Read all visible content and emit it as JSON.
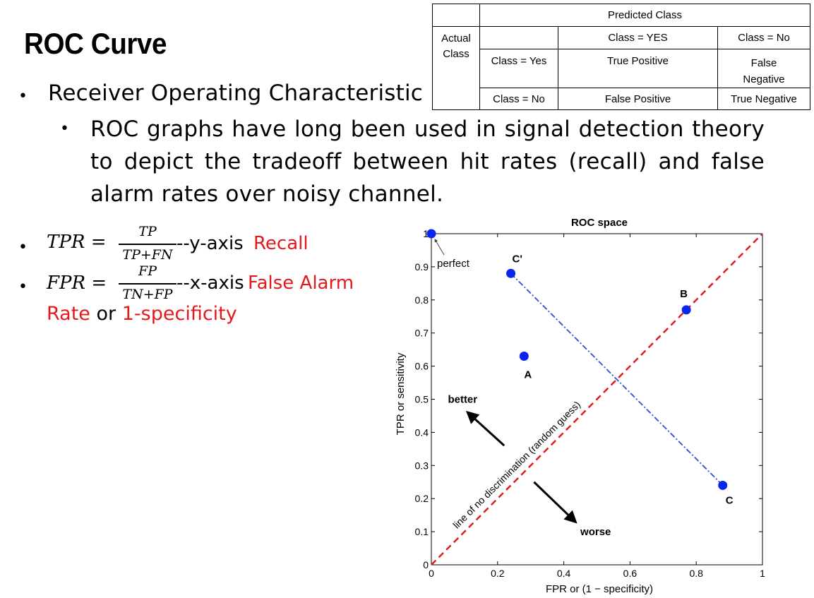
{
  "slide": {
    "title": "ROC Curve",
    "bullet1": "Receiver Operating Characteristic",
    "bullet2": "ROC graphs have long been used in signal detection theory to depict the tradeoff between hit rates (recall) and false alarm rates over noisy channel.",
    "bullet_char": "•"
  },
  "formulas": {
    "tpr": {
      "lhs": "TPR",
      "eq": "=",
      "num": "TP",
      "den": "TP+FN",
      "suffix": "--y-axis",
      "term": "Recall"
    },
    "fpr": {
      "lhs": "FPR",
      "eq": "=",
      "num": "FP",
      "den": "TN+FP",
      "suffix": "--x-axis",
      "term": "False Alarm"
    },
    "rate_line": {
      "part1": "Rate",
      "part2": "or",
      "part3": "1-specificity"
    }
  },
  "confusion_matrix": {
    "predicted_header": "Predicted Class",
    "actual_header": "Actual Class",
    "col_yes": "Class = YES",
    "col_no": "Class = No",
    "row_yes": "Class = Yes",
    "row_no": "Class = No",
    "tp": "True Positive",
    "fn": "False Negative",
    "fp": "False Positive",
    "tn": "True Negative"
  },
  "chart_data": {
    "type": "scatter",
    "title": "ROC space",
    "xlabel": "FPR or (1 − specificity)",
    "ylabel": "TPR or sensitivity",
    "xlim": [
      0,
      1
    ],
    "ylim": [
      0,
      1
    ],
    "x_ticks": [
      "0",
      "0.2",
      "0.4",
      "0.6",
      "0.8",
      "1"
    ],
    "y_ticks": [
      "0",
      "0.1",
      "0.2",
      "0.3",
      "0.4",
      "0.5",
      "0.6",
      "0.7",
      "0.8",
      "0.9",
      "1"
    ],
    "points": [
      {
        "label": "perfect",
        "x": 0.0,
        "y": 1.0
      },
      {
        "label": "C'",
        "x": 0.24,
        "y": 0.88
      },
      {
        "label": "A",
        "x": 0.28,
        "y": 0.63
      },
      {
        "label": "B",
        "x": 0.77,
        "y": 0.77
      },
      {
        "label": "C",
        "x": 0.88,
        "y": 0.24
      }
    ],
    "diagonal_label": "line of no discrimination (random guess)",
    "annotation_better": "better",
    "annotation_worse": "worse",
    "colors": {
      "points": "#0b24f0",
      "diagonal": "#e3191c",
      "connector": "#2f4fd0"
    }
  }
}
